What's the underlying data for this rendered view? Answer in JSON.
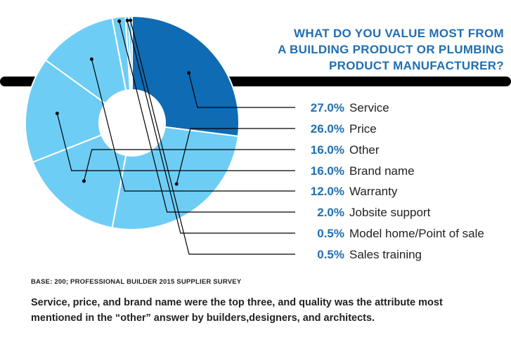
{
  "chart_data": {
    "type": "pie",
    "title_lines": [
      "WHAT DO YOU VALUE MOST FROM",
      "A BUILDING PRODUCT OR PLUMBING",
      "PRODUCT MANUFACTURER?"
    ],
    "slices": [
      {
        "label": "Service",
        "value": 27.0,
        "value_label": "27.0%",
        "color": "#6ecdf5"
      },
      {
        "label": "Price",
        "value": 26.0,
        "value_label": "26.0%",
        "color": "#6ecdf5"
      },
      {
        "label": "Other",
        "value": 16.0,
        "value_label": "16.0%",
        "color": "#6ecdf5"
      },
      {
        "label": "Brand name",
        "value": 16.0,
        "value_label": "16.0%",
        "color": "#6ecdf5"
      },
      {
        "label": "Warranty",
        "value": 12.0,
        "value_label": "12.0%",
        "color": "#6ecdf5"
      },
      {
        "label": "Jobsite support",
        "value": 2.0,
        "value_label": "2.0%",
        "color": "#6ecdf5"
      },
      {
        "label": "Model home/Point of sale",
        "value": 0.5,
        "value_label": "0.5%",
        "color": "#6ecdf5"
      },
      {
        "label": "Sales training",
        "value": 0.5,
        "value_label": "0.5%",
        "color": "#6ecdf5"
      }
    ],
    "highlight_color": "#0f6bb3",
    "style": "donut"
  },
  "footer": {
    "base_note": "BASE: 200; PROFESSIONAL BUILDER 2015 SUPPLIER SURVEY",
    "caption": "Service, price, and brand name were the top three, and quality was the attribute most mentioned in the “other” answer by builders,designers, and architects."
  }
}
